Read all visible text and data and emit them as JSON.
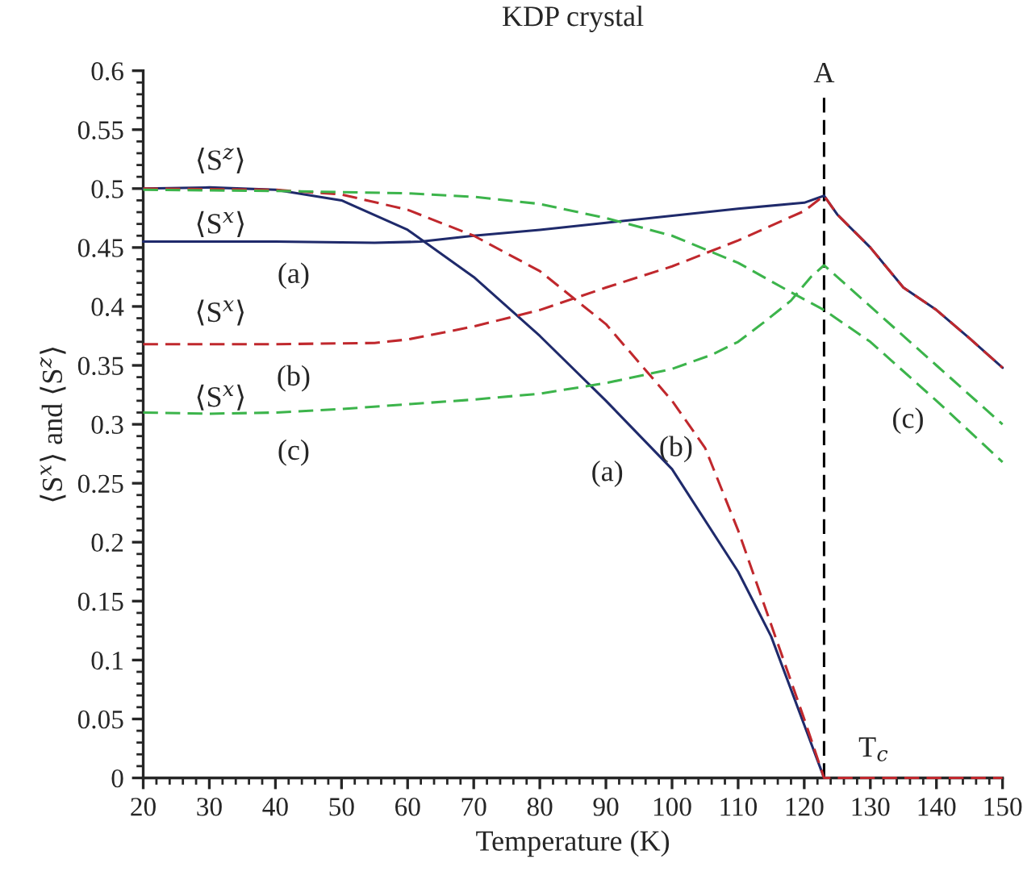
{
  "chart_data": {
    "type": "line",
    "title": "KDP crystal",
    "xlabel": "Temperature (K)",
    "ylabel": "⟨S$^{x}$⟩ and ⟨S$^{z}$⟩",
    "xlim": [
      20,
      150
    ],
    "xticks": [
      20,
      30,
      40,
      50,
      60,
      70,
      80,
      90,
      100,
      110,
      120,
      130,
      140,
      150
    ],
    "ylim": [
      0,
      0.6
    ],
    "yticks": [
      0,
      0.05,
      0.1,
      0.15,
      0.2,
      0.25,
      0.3,
      0.35,
      0.4,
      0.45,
      0.5,
      0.55,
      0.6
    ],
    "grid": false,
    "marker": "none",
    "series": [
      {
        "color": "#1f2a6b",
        "line_style": "solid",
        "x": [
          20,
          30,
          40,
          50,
          60,
          70,
          80,
          90,
          100,
          110,
          115,
          120,
          123
        ],
        "values": [
          0.5,
          0.501,
          0.499,
          0.49,
          0.465,
          0.425,
          0.375,
          0.32,
          0.262,
          0.175,
          0.12,
          0.045,
          0
        ]
      },
      {
        "color": "#1f2a6b",
        "line_style": "solid",
        "x": [
          20,
          40,
          55,
          62,
          70,
          80,
          90,
          100,
          110,
          120,
          123,
          125,
          130,
          135,
          140,
          145,
          150
        ],
        "values": [
          0.455,
          0.455,
          0.454,
          0.455,
          0.46,
          0.465,
          0.471,
          0.477,
          0.483,
          0.488,
          0.494,
          0.478,
          0.45,
          0.416,
          0.397,
          0.373,
          0.348
        ]
      },
      {
        "color": "#c0282d",
        "line_style": "dashed",
        "x": [
          20,
          40,
          50,
          60,
          70,
          80,
          90,
          100,
          105,
          110,
          115,
          120,
          123,
          130,
          140,
          150
        ],
        "values": [
          0.5,
          0.499,
          0.495,
          0.482,
          0.46,
          0.43,
          0.385,
          0.32,
          0.28,
          0.21,
          0.13,
          0.05,
          0,
          0,
          0,
          0
        ]
      },
      {
        "color": "#c0282d",
        "line_style": "dashed",
        "x": [
          20,
          40,
          55,
          60,
          70,
          80,
          90,
          100,
          110,
          120,
          123,
          125,
          130,
          135,
          140,
          145,
          150
        ],
        "values": [
          0.368,
          0.368,
          0.369,
          0.372,
          0.383,
          0.397,
          0.416,
          0.434,
          0.456,
          0.481,
          0.494,
          0.478,
          0.45,
          0.416,
          0.397,
          0.373,
          0.348
        ]
      },
      {
        "color": "#3cb44b",
        "line_style": "dashed",
        "x": [
          20,
          40,
          60,
          70,
          80,
          90,
          100,
          110,
          118,
          123,
          130,
          140,
          150
        ],
        "values": [
          0.499,
          0.498,
          0.496,
          0.493,
          0.487,
          0.475,
          0.46,
          0.437,
          0.412,
          0.397,
          0.37,
          0.32,
          0.268
        ]
      },
      {
        "color": "#3cb44b",
        "line_style": "dashed",
        "x": [
          20,
          30,
          40,
          50,
          60,
          70,
          80,
          90,
          100,
          106,
          110,
          114,
          118,
          121,
          123,
          126,
          130,
          140,
          150
        ],
        "values": [
          0.31,
          0.309,
          0.31,
          0.313,
          0.317,
          0.321,
          0.326,
          0.335,
          0.347,
          0.359,
          0.37,
          0.387,
          0.405,
          0.425,
          0.435,
          0.42,
          0.4,
          0.35,
          0.3
        ]
      }
    ],
    "ref_lines": [
      {
        "axis": "x",
        "value": 123,
        "label": "A",
        "color": "#000000",
        "line_style": "dashed"
      }
    ],
    "annotations": [
      "⟨S$^{z}$⟩",
      "⟨S$^{x}$⟩",
      "(a)",
      "⟨S$^{x}$⟩",
      "(b)",
      "⟨S$^{x}$⟩",
      "(c)",
      "(a)",
      "(b)",
      "(c)",
      "T$_{c}$"
    ]
  }
}
